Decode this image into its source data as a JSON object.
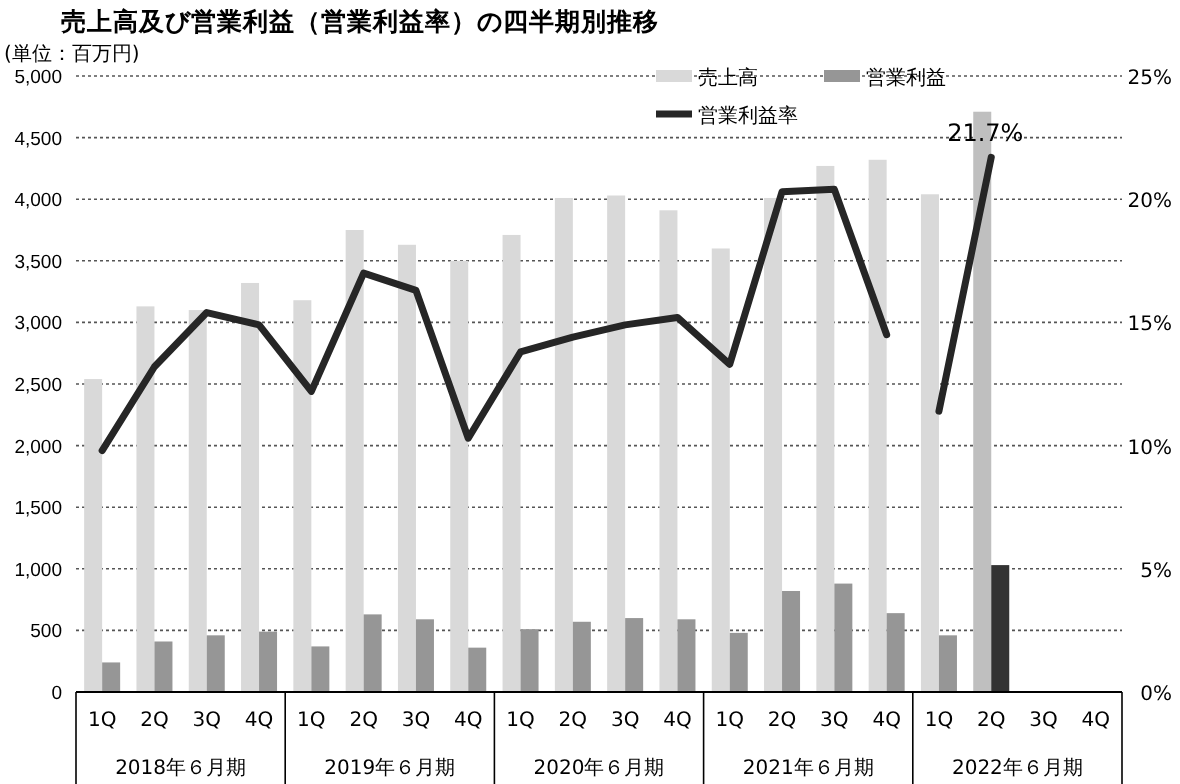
{
  "chart_data": {
    "type": "bar",
    "title": "売上高及び営業利益（営業利益率）の四半期別推移",
    "ylabel": "(単位：百万円)",
    "categories": [
      "1Q",
      "2Q",
      "3Q",
      "4Q",
      "1Q",
      "2Q",
      "3Q",
      "4Q",
      "1Q",
      "2Q",
      "3Q",
      "4Q",
      "1Q",
      "2Q",
      "3Q",
      "4Q",
      "1Q",
      "2Q",
      "3Q",
      "4Q"
    ],
    "annotations": [
      "2018年６月期",
      "2019年６月期",
      "2020年６月期",
      "2021年６月期",
      "2022年６月期"
    ],
    "series": [
      {
        "name": "売上高",
        "color": "#d9d9d9",
        "colors": [
          "#d9d9d9",
          "#d9d9d9",
          "#d9d9d9",
          "#d9d9d9",
          "#d9d9d9",
          "#d9d9d9",
          "#d9d9d9",
          "#d9d9d9",
          "#d9d9d9",
          "#d9d9d9",
          "#d9d9d9",
          "#d9d9d9",
          "#d9d9d9",
          "#d9d9d9",
          "#d9d9d9",
          "#d9d9d9",
          "#d9d9d9",
          "#bfbfbf",
          null,
          null
        ],
        "values": [
          2540,
          3130,
          3100,
          3320,
          3180,
          3750,
          3630,
          3500,
          3710,
          4010,
          4030,
          3910,
          3600,
          4010,
          4270,
          4320,
          4040,
          4710,
          null,
          null
        ]
      },
      {
        "name": "営業利益",
        "color": "#969696",
        "colors": [
          "#969696",
          "#969696",
          "#969696",
          "#969696",
          "#969696",
          "#969696",
          "#969696",
          "#969696",
          "#969696",
          "#969696",
          "#969696",
          "#969696",
          "#969696",
          "#969696",
          "#969696",
          "#969696",
          "#969696",
          "#333333",
          null,
          null
        ],
        "values": [
          240,
          410,
          460,
          490,
          370,
          630,
          590,
          360,
          510,
          570,
          600,
          590,
          480,
          820,
          880,
          640,
          460,
          1030,
          null,
          null
        ]
      },
      {
        "name": "営業利益率",
        "type": "line",
        "axis": "y2",
        "color": "#262626",
        "values": [
          9.8,
          13.2,
          15.4,
          14.9,
          12.2,
          17.0,
          16.3,
          10.3,
          13.8,
          14.4,
          14.9,
          15.2,
          13.3,
          20.3,
          20.4,
          14.5,
          null,
          null,
          null,
          null
        ]
      },
      {
        "type": "line",
        "axis": "y2",
        "color": "#262626",
        "values": [
          null,
          null,
          null,
          null,
          null,
          null,
          null,
          null,
          null,
          null,
          null,
          null,
          null,
          null,
          null,
          null,
          11.4,
          21.7,
          null,
          null
        ],
        "value_labels": [
          null,
          null,
          null,
          null,
          null,
          null,
          null,
          null,
          null,
          null,
          null,
          null,
          null,
          null,
          null,
          null,
          null,
          "21.7%",
          null,
          null
        ]
      }
    ],
    "ylim": [
      0,
      5000
    ],
    "yticks": [
      {
        "value": 0,
        "label": "0"
      },
      {
        "value": 500,
        "label": "500"
      },
      {
        "value": 1000,
        "label": "1,000"
      },
      {
        "value": 1500,
        "label": "1,500"
      },
      {
        "value": 2000,
        "label": "2,000"
      },
      {
        "value": 2500,
        "label": "2,500"
      },
      {
        "value": 3000,
        "label": "3,000"
      },
      {
        "value": 3500,
        "label": "3,500"
      },
      {
        "value": 4000,
        "label": "4,000"
      },
      {
        "value": 4500,
        "label": "4,500"
      },
      {
        "value": 5000,
        "label": "5,000"
      }
    ],
    "y2lim": [
      0,
      25
    ],
    "y2ticks": [
      {
        "value": 0,
        "label": "0%"
      },
      {
        "value": 5,
        "label": "5%"
      },
      {
        "value": 10,
        "label": "10%"
      },
      {
        "value": 15,
        "label": "15%"
      },
      {
        "value": 20,
        "label": "20%"
      },
      {
        "value": 25,
        "label": "25%"
      }
    ],
    "grid": "y",
    "legend": "top right",
    "line_style": "solid",
    "marker": "none"
  }
}
